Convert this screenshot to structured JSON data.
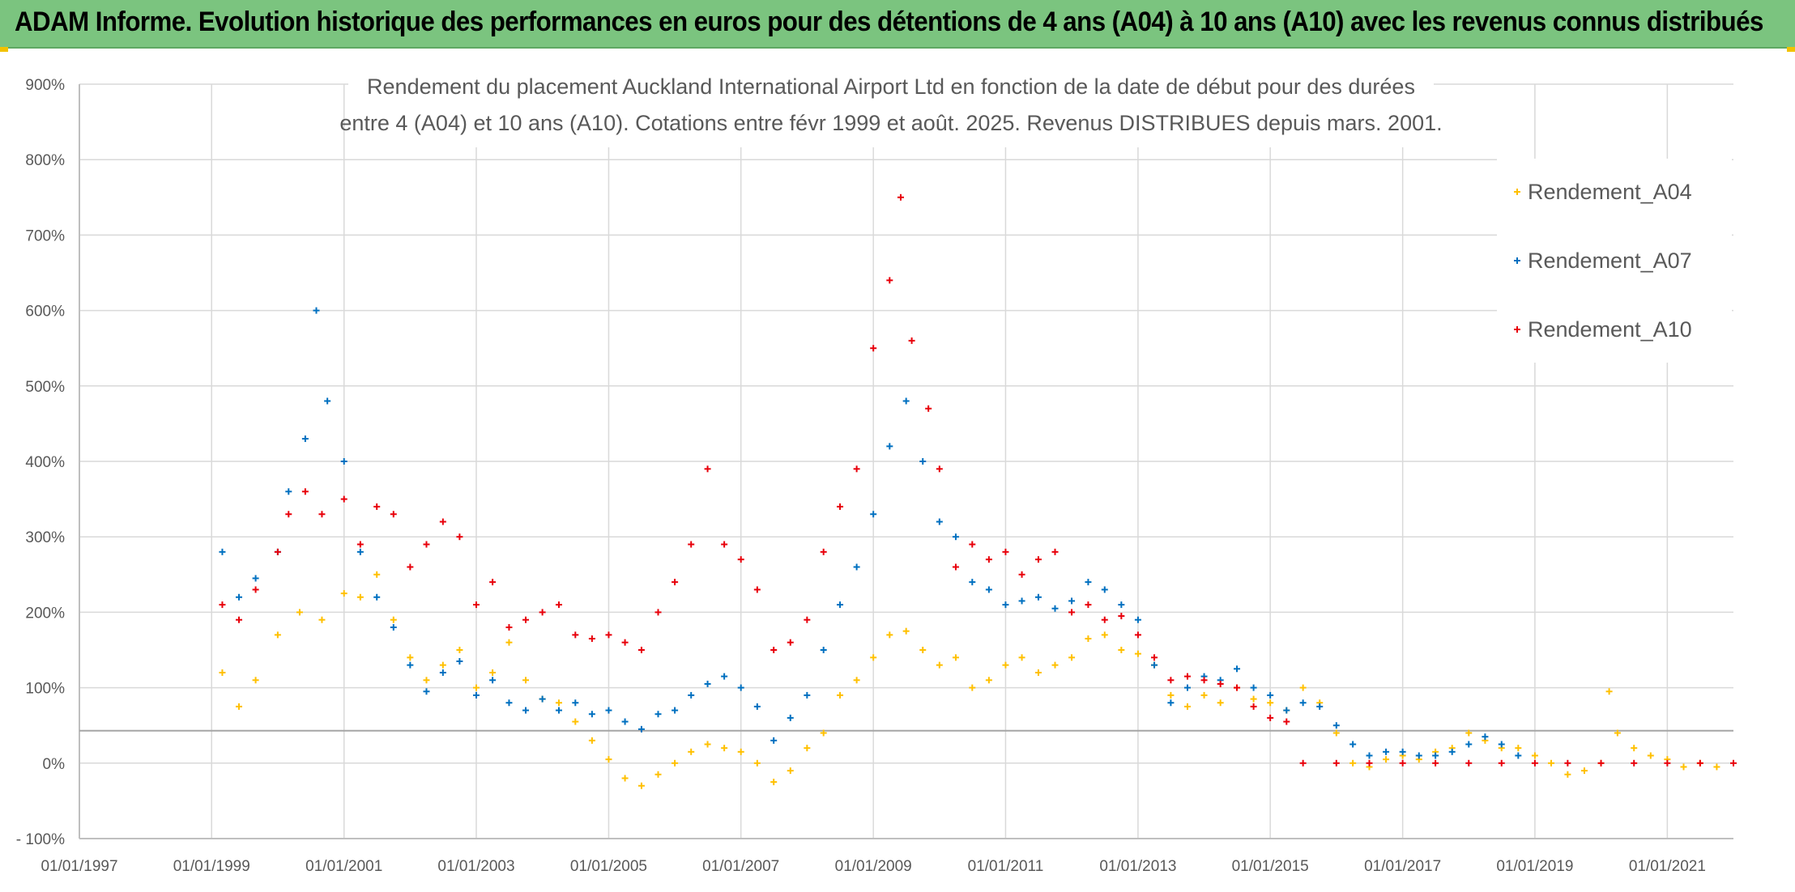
{
  "banner": {
    "title": "ADAM Informe. Evolution historique des performances en euros pour des détentions de 4 ans (A04) à 10 ans (A10) avec les revenus connus distribués"
  },
  "colors": {
    "banner_bg": "#7bc47f",
    "A04": "#ffc000",
    "A07": "#0070c0",
    "A10": "#e8000b",
    "grid": "#d9d9d9"
  },
  "chart_data": {
    "type": "scatter",
    "title_lines": [
      "Rendement du placement Auckland International Airport Ltd en fonction de la date de début pour des durées",
      "entre 4 (A04) et 10 ans (A10). Cotations entre févr 1999 et août. 2025. Revenus DISTRIBUES depuis mars. 2001."
    ],
    "x_axis": {
      "type": "date",
      "range": [
        "1997-01-01",
        "2022-01-01"
      ],
      "tick_labels": [
        "01/01/1997",
        "01/01/1999",
        "01/01/2001",
        "01/01/2003",
        "01/01/2005",
        "01/01/2007",
        "01/01/2009",
        "01/01/2011",
        "01/01/2013",
        "01/01/2015",
        "01/01/2017",
        "01/01/2019",
        "01/01/2021"
      ]
    },
    "y_axis": {
      "range": [
        -100,
        900
      ],
      "unit": "%",
      "tick_labels": [
        "- 100%",
        "0%",
        "100%",
        "200%",
        "300%",
        "400%",
        "500%",
        "600%",
        "700%",
        "800%",
        "900%"
      ]
    },
    "grid": true,
    "legend_position": "top-right",
    "marker": "+",
    "series": [
      {
        "name": "Rendement_A04",
        "color": "#ffc000",
        "points": [
          [
            "1999-03-01",
            120
          ],
          [
            "1999-06-01",
            75
          ],
          [
            "1999-09-01",
            110
          ],
          [
            "2000-01-01",
            170
          ],
          [
            "2000-05-01",
            200
          ],
          [
            "2000-09-01",
            190
          ],
          [
            "2001-01-01",
            225
          ],
          [
            "2001-04-01",
            220
          ],
          [
            "2001-07-01",
            250
          ],
          [
            "2001-10-01",
            190
          ],
          [
            "2002-01-01",
            140
          ],
          [
            "2002-04-01",
            110
          ],
          [
            "2002-07-01",
            130
          ],
          [
            "2002-10-01",
            150
          ],
          [
            "2003-01-01",
            100
          ],
          [
            "2003-04-01",
            120
          ],
          [
            "2003-07-01",
            160
          ],
          [
            "2003-10-01",
            110
          ],
          [
            "2004-01-01",
            85
          ],
          [
            "2004-04-01",
            80
          ],
          [
            "2004-07-01",
            55
          ],
          [
            "2004-10-01",
            30
          ],
          [
            "2005-01-01",
            5
          ],
          [
            "2005-04-01",
            -20
          ],
          [
            "2005-07-01",
            -30
          ],
          [
            "2005-10-01",
            -15
          ],
          [
            "2006-01-01",
            0
          ],
          [
            "2006-04-01",
            15
          ],
          [
            "2006-07-01",
            25
          ],
          [
            "2006-10-01",
            20
          ],
          [
            "2007-01-01",
            15
          ],
          [
            "2007-04-01",
            0
          ],
          [
            "2007-07-01",
            -25
          ],
          [
            "2007-10-01",
            -10
          ],
          [
            "2008-01-01",
            20
          ],
          [
            "2008-04-01",
            40
          ],
          [
            "2008-07-01",
            90
          ],
          [
            "2008-10-01",
            110
          ],
          [
            "2009-01-01",
            140
          ],
          [
            "2009-04-01",
            170
          ],
          [
            "2009-07-01",
            175
          ],
          [
            "2009-10-01",
            150
          ],
          [
            "2010-01-01",
            130
          ],
          [
            "2010-04-01",
            140
          ],
          [
            "2010-07-01",
            100
          ],
          [
            "2010-10-01",
            110
          ],
          [
            "2011-01-01",
            130
          ],
          [
            "2011-04-01",
            140
          ],
          [
            "2011-07-01",
            120
          ],
          [
            "2011-10-01",
            130
          ],
          [
            "2012-01-01",
            140
          ],
          [
            "2012-04-01",
            165
          ],
          [
            "2012-07-01",
            170
          ],
          [
            "2012-10-01",
            150
          ],
          [
            "2013-01-01",
            145
          ],
          [
            "2013-04-01",
            130
          ],
          [
            "2013-07-01",
            90
          ],
          [
            "2013-10-01",
            75
          ],
          [
            "2014-01-01",
            90
          ],
          [
            "2014-04-01",
            80
          ],
          [
            "2014-07-01",
            100
          ],
          [
            "2014-10-01",
            85
          ],
          [
            "2015-01-01",
            80
          ],
          [
            "2015-04-01",
            70
          ],
          [
            "2015-07-01",
            100
          ],
          [
            "2015-10-01",
            80
          ],
          [
            "2016-01-01",
            40
          ],
          [
            "2016-04-01",
            0
          ],
          [
            "2016-07-01",
            -5
          ],
          [
            "2016-10-01",
            5
          ],
          [
            "2017-01-01",
            10
          ],
          [
            "2017-04-01",
            5
          ],
          [
            "2017-07-01",
            15
          ],
          [
            "2017-10-01",
            20
          ],
          [
            "2018-01-01",
            40
          ],
          [
            "2018-04-01",
            30
          ],
          [
            "2018-07-01",
            20
          ],
          [
            "2018-10-01",
            20
          ],
          [
            "2019-01-01",
            10
          ],
          [
            "2019-04-01",
            0
          ],
          [
            "2019-07-01",
            -15
          ],
          [
            "2019-10-01",
            -10
          ],
          [
            "2020-01-01",
            0
          ],
          [
            "2020-02-15",
            95
          ],
          [
            "2020-04-01",
            40
          ],
          [
            "2020-07-01",
            20
          ],
          [
            "2020-10-01",
            10
          ],
          [
            "2021-01-01",
            5
          ],
          [
            "2021-04-01",
            -5
          ],
          [
            "2021-07-01",
            0
          ],
          [
            "2021-10-01",
            -5
          ]
        ]
      },
      {
        "name": "Rendement_A07",
        "color": "#0070c0",
        "points": [
          [
            "1999-03-01",
            280
          ],
          [
            "1999-06-01",
            220
          ],
          [
            "1999-09-01",
            245
          ],
          [
            "2000-01-01",
            280
          ],
          [
            "2000-03-01",
            360
          ],
          [
            "2000-06-01",
            430
          ],
          [
            "2000-08-01",
            600
          ],
          [
            "2000-10-01",
            480
          ],
          [
            "2001-01-01",
            400
          ],
          [
            "2001-04-01",
            280
          ],
          [
            "2001-07-01",
            220
          ],
          [
            "2001-10-01",
            180
          ],
          [
            "2002-01-01",
            130
          ],
          [
            "2002-04-01",
            95
          ],
          [
            "2002-07-01",
            120
          ],
          [
            "2002-10-01",
            135
          ],
          [
            "2003-01-01",
            90
          ],
          [
            "2003-04-01",
            110
          ],
          [
            "2003-07-01",
            80
          ],
          [
            "2003-10-01",
            70
          ],
          [
            "2004-01-01",
            85
          ],
          [
            "2004-04-01",
            70
          ],
          [
            "2004-07-01",
            80
          ],
          [
            "2004-10-01",
            65
          ],
          [
            "2005-01-01",
            70
          ],
          [
            "2005-04-01",
            55
          ],
          [
            "2005-07-01",
            45
          ],
          [
            "2005-10-01",
            65
          ],
          [
            "2006-01-01",
            70
          ],
          [
            "2006-04-01",
            90
          ],
          [
            "2006-07-01",
            105
          ],
          [
            "2006-10-01",
            115
          ],
          [
            "2007-01-01",
            100
          ],
          [
            "2007-04-01",
            75
          ],
          [
            "2007-07-01",
            30
          ],
          [
            "2007-10-01",
            60
          ],
          [
            "2008-01-01",
            90
          ],
          [
            "2008-04-01",
            150
          ],
          [
            "2008-07-01",
            210
          ],
          [
            "2008-10-01",
            260
          ],
          [
            "2009-01-01",
            330
          ],
          [
            "2009-04-01",
            420
          ],
          [
            "2009-07-01",
            480
          ],
          [
            "2009-10-01",
            400
          ],
          [
            "2010-01-01",
            320
          ],
          [
            "2010-04-01",
            300
          ],
          [
            "2010-07-01",
            240
          ],
          [
            "2010-10-01",
            230
          ],
          [
            "2011-01-01",
            210
          ],
          [
            "2011-04-01",
            215
          ],
          [
            "2011-07-01",
            220
          ],
          [
            "2011-10-01",
            205
          ],
          [
            "2012-01-01",
            215
          ],
          [
            "2012-04-01",
            240
          ],
          [
            "2012-07-01",
            230
          ],
          [
            "2012-10-01",
            210
          ],
          [
            "2013-01-01",
            190
          ],
          [
            "2013-04-01",
            130
          ],
          [
            "2013-07-01",
            80
          ],
          [
            "2013-10-01",
            100
          ],
          [
            "2014-01-01",
            115
          ],
          [
            "2014-04-01",
            110
          ],
          [
            "2014-07-01",
            125
          ],
          [
            "2014-10-01",
            100
          ],
          [
            "2015-01-01",
            90
          ],
          [
            "2015-04-01",
            70
          ],
          [
            "2015-07-01",
            80
          ],
          [
            "2015-10-01",
            75
          ],
          [
            "2016-01-01",
            50
          ],
          [
            "2016-04-01",
            25
          ],
          [
            "2016-07-01",
            10
          ],
          [
            "2016-10-01",
            15
          ],
          [
            "2017-01-01",
            15
          ],
          [
            "2017-04-01",
            10
          ],
          [
            "2017-07-01",
            10
          ],
          [
            "2017-10-01",
            15
          ],
          [
            "2018-01-01",
            25
          ],
          [
            "2018-04-01",
            35
          ],
          [
            "2018-07-01",
            25
          ],
          [
            "2018-10-01",
            10
          ]
        ]
      },
      {
        "name": "Rendement_A10",
        "color": "#e8000b",
        "points": [
          [
            "1999-03-01",
            210
          ],
          [
            "1999-06-01",
            190
          ],
          [
            "1999-09-01",
            230
          ],
          [
            "2000-01-01",
            280
          ],
          [
            "2000-03-01",
            330
          ],
          [
            "2000-06-01",
            360
          ],
          [
            "2000-09-01",
            330
          ],
          [
            "2001-01-01",
            350
          ],
          [
            "2001-04-01",
            290
          ],
          [
            "2001-07-01",
            340
          ],
          [
            "2001-10-01",
            330
          ],
          [
            "2002-01-01",
            260
          ],
          [
            "2002-04-01",
            290
          ],
          [
            "2002-07-01",
            320
          ],
          [
            "2002-10-01",
            300
          ],
          [
            "2003-01-01",
            210
          ],
          [
            "2003-04-01",
            240
          ],
          [
            "2003-07-01",
            180
          ],
          [
            "2003-10-01",
            190
          ],
          [
            "2004-01-01",
            200
          ],
          [
            "2004-04-01",
            210
          ],
          [
            "2004-07-01",
            170
          ],
          [
            "2004-10-01",
            165
          ],
          [
            "2005-01-01",
            170
          ],
          [
            "2005-04-01",
            160
          ],
          [
            "2005-07-01",
            150
          ],
          [
            "2005-10-01",
            200
          ],
          [
            "2006-01-01",
            240
          ],
          [
            "2006-04-01",
            290
          ],
          [
            "2006-07-01",
            390
          ],
          [
            "2006-10-01",
            290
          ],
          [
            "2007-01-01",
            270
          ],
          [
            "2007-04-01",
            230
          ],
          [
            "2007-07-01",
            150
          ],
          [
            "2007-10-01",
            160
          ],
          [
            "2008-01-01",
            190
          ],
          [
            "2008-04-01",
            280
          ],
          [
            "2008-07-01",
            340
          ],
          [
            "2008-10-01",
            390
          ],
          [
            "2009-01-01",
            550
          ],
          [
            "2009-04-01",
            640
          ],
          [
            "2009-06-01",
            750
          ],
          [
            "2009-08-01",
            560
          ],
          [
            "2009-11-01",
            470
          ],
          [
            "2010-01-01",
            390
          ],
          [
            "2010-04-01",
            260
          ],
          [
            "2010-07-01",
            290
          ],
          [
            "2010-10-01",
            270
          ],
          [
            "2011-01-01",
            280
          ],
          [
            "2011-04-01",
            250
          ],
          [
            "2011-07-01",
            270
          ],
          [
            "2011-10-01",
            280
          ],
          [
            "2012-01-01",
            200
          ],
          [
            "2012-04-01",
            210
          ],
          [
            "2012-07-01",
            190
          ],
          [
            "2012-10-01",
            195
          ],
          [
            "2013-01-01",
            170
          ],
          [
            "2013-04-01",
            140
          ],
          [
            "2013-07-01",
            110
          ],
          [
            "2013-10-01",
            115
          ],
          [
            "2014-01-01",
            110
          ],
          [
            "2014-04-01",
            105
          ],
          [
            "2014-07-01",
            100
          ],
          [
            "2014-10-01",
            75
          ],
          [
            "2015-01-01",
            60
          ],
          [
            "2015-04-01",
            55
          ],
          [
            "2015-07-01",
            0
          ],
          [
            "2016-01-01",
            0
          ],
          [
            "2016-07-01",
            0
          ],
          [
            "2017-01-01",
            0
          ],
          [
            "2017-07-01",
            0
          ],
          [
            "2018-01-01",
            0
          ],
          [
            "2018-07-01",
            0
          ],
          [
            "2019-01-01",
            0
          ],
          [
            "2019-07-01",
            0
          ],
          [
            "2020-01-01",
            0
          ],
          [
            "2020-07-01",
            0
          ],
          [
            "2021-01-01",
            0
          ],
          [
            "2021-07-01",
            0
          ],
          [
            "2022-01-01",
            0
          ]
        ]
      }
    ]
  }
}
